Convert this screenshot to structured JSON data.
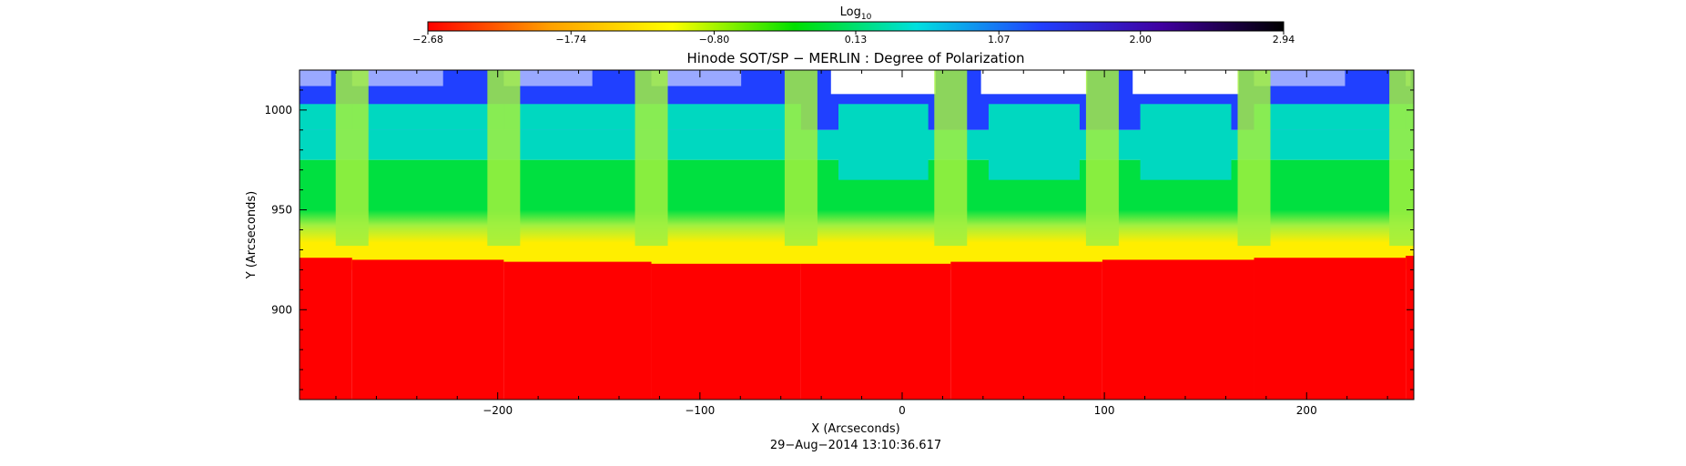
{
  "chart_data": {
    "type": "heatmap",
    "title": "Hinode SOT/SP − MERLIN : Degree of Polarization",
    "xlabel": "X (Arcseconds)",
    "ylabel": "Y (Arcseconds)",
    "timestamp": "29−Aug−2014 13:10:36.617",
    "xlim": [
      -298,
      253
    ],
    "ylim": [
      855,
      1020
    ],
    "x_ticks": [
      -200,
      -100,
      0,
      100,
      200
    ],
    "x_tick_labels": [
      "−200",
      "−100",
      "0",
      "100",
      "200"
    ],
    "y_ticks": [
      900,
      950,
      1000
    ],
    "y_tick_labels": [
      "900",
      "950",
      "1000"
    ],
    "colorbar": {
      "label_base": "Log",
      "label_sub": "10",
      "range": [
        -2.68,
        2.94
      ],
      "ticks": [
        -2.68,
        -1.74,
        -0.8,
        0.13,
        1.07,
        2.0,
        2.94
      ],
      "tick_labels": [
        "−2.68",
        "−1.74",
        "−0.80",
        "0.13",
        "1.07",
        "2.00",
        "2.94"
      ],
      "colors": [
        "#ff0000",
        "#ffa000",
        "#ffff00",
        "#00e000",
        "#00e0e0",
        "#2040ff",
        "#4000a0",
        "#000000"
      ]
    },
    "regions": {
      "disk_color": "#ff0000",
      "limb_color": "#ffee00",
      "low_corona_color": "#a0f040",
      "corona_color": "#00e040",
      "upper_corona_color": "#00d8c0",
      "high_color": "#2040ff",
      "saturated_color": "#ffffff",
      "limb_y": [
        926,
        925,
        924,
        923,
        923,
        924,
        925,
        926,
        927,
        927
      ],
      "slit_x": [
        -272,
        -197,
        -124,
        -50,
        24,
        99,
        174,
        249
      ]
    }
  }
}
